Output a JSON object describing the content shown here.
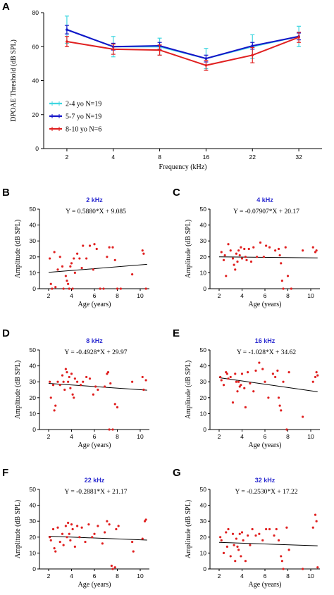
{
  "panel_a": {
    "letter": "A",
    "chart_data": {
      "type": "line",
      "xlabel": "Frequency (kHz)",
      "ylabel": "DPOAE Threshold (dB SPL)",
      "categories": [
        "2",
        "4",
        "8",
        "16",
        "22",
        "32"
      ],
      "ylim": [
        0,
        80
      ],
      "yticks": [
        0,
        20,
        40,
        60,
        80
      ],
      "legend_position": "bottom-left",
      "series": [
        {
          "name": "2-4 yo N=19",
          "color": "#3fd6e0",
          "values": [
            70,
            60,
            60,
            53,
            60,
            66
          ],
          "err": [
            8,
            6,
            5,
            6,
            7,
            6
          ]
        },
        {
          "name": "5-7 yo N=19",
          "color": "#1414c8",
          "values": [
            70,
            60,
            60.5,
            53,
            60.5,
            66
          ],
          "err": [
            2.5,
            2,
            2,
            2,
            2,
            2
          ]
        },
        {
          "name": "8-10 yo N=6",
          "color": "#e02020",
          "values": [
            63,
            58.5,
            58,
            49,
            55,
            65.5
          ],
          "err": [
            3,
            3,
            3,
            3,
            4.5,
            3
          ]
        }
      ]
    }
  },
  "panels": [
    {
      "letter": "B",
      "chart_data": {
        "type": "scatter",
        "title": "2 kHz",
        "equation": "Y = 0.5880*X + 9.085",
        "xlabel": "Age (years)",
        "ylabel": "Amplitude (dB SPL)",
        "xlim": [
          1.2,
          10.8
        ],
        "xticks": [
          2,
          4,
          6,
          8,
          10
        ],
        "ylim": [
          0,
          50
        ],
        "yticks": [
          0,
          10,
          20,
          30,
          40,
          50
        ],
        "fit": {
          "slope": 0.588,
          "intercept": 9.085,
          "x_range": [
            2,
            10.6
          ]
        },
        "points": [
          [
            2.1,
            19
          ],
          [
            2.2,
            3
          ],
          [
            2.3,
            0
          ],
          [
            2.5,
            23
          ],
          [
            2.6,
            1
          ],
          [
            2.8,
            12
          ],
          [
            3.0,
            20
          ],
          [
            3.2,
            14
          ],
          [
            3.3,
            0
          ],
          [
            3.5,
            8
          ],
          [
            3.6,
            5
          ],
          [
            3.7,
            3
          ],
          [
            3.8,
            0
          ],
          [
            3.9,
            14
          ],
          [
            4.0,
            16
          ],
          [
            4.1,
            0
          ],
          [
            4.2,
            19
          ],
          [
            4.3,
            10
          ],
          [
            4.5,
            22
          ],
          [
            4.7,
            19
          ],
          [
            4.9,
            13
          ],
          [
            5.0,
            27
          ],
          [
            5.3,
            19
          ],
          [
            5.6,
            27
          ],
          [
            5.9,
            12
          ],
          [
            6.0,
            28
          ],
          [
            6.2,
            25
          ],
          [
            6.5,
            0
          ],
          [
            6.8,
            0
          ],
          [
            7.1,
            20
          ],
          [
            7.3,
            26
          ],
          [
            7.6,
            26
          ],
          [
            7.8,
            18
          ],
          [
            8.0,
            0
          ],
          [
            8.3,
            0
          ],
          [
            9.3,
            9
          ],
          [
            10.2,
            24
          ],
          [
            10.3,
            22
          ],
          [
            10.5,
            0
          ]
        ]
      }
    },
    {
      "letter": "C",
      "chart_data": {
        "type": "scatter",
        "title": "4 kHz",
        "equation": "Y = -0.07907*X + 20.17",
        "xlabel": "Age (years)",
        "ylabel": "Amplitude (dB SPL)",
        "xlim": [
          1.2,
          10.8
        ],
        "xticks": [
          2,
          4,
          6,
          8,
          10
        ],
        "ylim": [
          0,
          50
        ],
        "yticks": [
          0,
          10,
          20,
          30,
          40,
          50
        ],
        "fit": {
          "slope": -0.07907,
          "intercept": 20.17,
          "x_range": [
            2,
            10.6
          ]
        },
        "points": [
          [
            2.2,
            23
          ],
          [
            2.4,
            18
          ],
          [
            2.5,
            21
          ],
          [
            2.6,
            8
          ],
          [
            2.8,
            28
          ],
          [
            3.0,
            24
          ],
          [
            3.2,
            19
          ],
          [
            3.3,
            15
          ],
          [
            3.4,
            12
          ],
          [
            3.5,
            22
          ],
          [
            3.6,
            17
          ],
          [
            3.7,
            24
          ],
          [
            3.8,
            21
          ],
          [
            3.9,
            26
          ],
          [
            4.0,
            19
          ],
          [
            4.2,
            25
          ],
          [
            4.3,
            20
          ],
          [
            4.4,
            18
          ],
          [
            4.6,
            25
          ],
          [
            4.8,
            17
          ],
          [
            5.0,
            26
          ],
          [
            5.3,
            20
          ],
          [
            5.6,
            29
          ],
          [
            5.9,
            20
          ],
          [
            6.1,
            27
          ],
          [
            6.4,
            26
          ],
          [
            6.9,
            24
          ],
          [
            7.2,
            25
          ],
          [
            7.3,
            21
          ],
          [
            7.4,
            16
          ],
          [
            7.5,
            5
          ],
          [
            7.6,
            0
          ],
          [
            7.8,
            26
          ],
          [
            8.0,
            8
          ],
          [
            8.3,
            0
          ],
          [
            9.3,
            24
          ],
          [
            10.2,
            26
          ],
          [
            10.4,
            23
          ],
          [
            10.5,
            24
          ]
        ]
      }
    },
    {
      "letter": "D",
      "chart_data": {
        "type": "scatter",
        "title": "8 kHz",
        "equation": "Y = -0.4928*X + 29.97",
        "xlabel": "Age (years)",
        "ylabel": "Amplitude (dB SPL)",
        "xlim": [
          1.2,
          10.8
        ],
        "xticks": [
          2,
          4,
          6,
          8,
          10
        ],
        "ylim": [
          0,
          50
        ],
        "yticks": [
          0,
          10,
          20,
          30,
          40,
          50
        ],
        "fit": {
          "slope": -0.4928,
          "intercept": 29.97,
          "x_range": [
            2,
            10.6
          ]
        },
        "points": [
          [
            2.1,
            30
          ],
          [
            2.2,
            20
          ],
          [
            2.4,
            28
          ],
          [
            2.5,
            12
          ],
          [
            2.6,
            15
          ],
          [
            2.8,
            30
          ],
          [
            3.0,
            28
          ],
          [
            3.2,
            34
          ],
          [
            3.3,
            30
          ],
          [
            3.4,
            25
          ],
          [
            3.5,
            38
          ],
          [
            3.6,
            36
          ],
          [
            3.7,
            30
          ],
          [
            3.8,
            33
          ],
          [
            3.9,
            26
          ],
          [
            4.0,
            35
          ],
          [
            4.1,
            22
          ],
          [
            4.2,
            20
          ],
          [
            4.3,
            32
          ],
          [
            4.5,
            30
          ],
          [
            4.8,
            28
          ],
          [
            5.0,
            30
          ],
          [
            5.3,
            33
          ],
          [
            5.6,
            32
          ],
          [
            5.9,
            22
          ],
          [
            6.1,
            27
          ],
          [
            6.3,
            25
          ],
          [
            6.9,
            27
          ],
          [
            7.1,
            35
          ],
          [
            7.2,
            36
          ],
          [
            7.3,
            0
          ],
          [
            7.4,
            29
          ],
          [
            7.6,
            0
          ],
          [
            7.8,
            16
          ],
          [
            8.0,
            14
          ],
          [
            9.3,
            30
          ],
          [
            10.2,
            33
          ],
          [
            10.3,
            25
          ],
          [
            10.5,
            31
          ]
        ]
      }
    },
    {
      "letter": "E",
      "chart_data": {
        "type": "scatter",
        "title": "16 kHz",
        "equation": "Y = -1.028*X + 34.62",
        "xlabel": "Age (years)",
        "ylabel": "Amplitude (dB SPL)",
        "xlim": [
          1.2,
          10.8
        ],
        "xticks": [
          2,
          4,
          6,
          8,
          10
        ],
        "ylim": [
          0,
          50
        ],
        "yticks": [
          0,
          10,
          20,
          30,
          40,
          50
        ],
        "fit": {
          "slope": -1.028,
          "intercept": 34.62,
          "x_range": [
            2,
            10.6
          ]
        },
        "points": [
          [
            2.1,
            33
          ],
          [
            2.2,
            31
          ],
          [
            2.4,
            28
          ],
          [
            2.6,
            36
          ],
          [
            2.7,
            35
          ],
          [
            2.8,
            32
          ],
          [
            3.0,
            33
          ],
          [
            3.2,
            17
          ],
          [
            3.4,
            35
          ],
          [
            3.5,
            30
          ],
          [
            3.6,
            24
          ],
          [
            3.7,
            30
          ],
          [
            3.8,
            27
          ],
          [
            3.9,
            28
          ],
          [
            4.0,
            35
          ],
          [
            4.2,
            26
          ],
          [
            4.3,
            14
          ],
          [
            4.5,
            36
          ],
          [
            4.7,
            29
          ],
          [
            5.0,
            24
          ],
          [
            5.2,
            37
          ],
          [
            5.5,
            42
          ],
          [
            5.8,
            38
          ],
          [
            6.0,
            30
          ],
          [
            6.3,
            20
          ],
          [
            6.7,
            35
          ],
          [
            6.9,
            33
          ],
          [
            7.1,
            37
          ],
          [
            7.2,
            20
          ],
          [
            7.3,
            15
          ],
          [
            7.4,
            12
          ],
          [
            7.6,
            30
          ],
          [
            7.9,
            0
          ],
          [
            8.1,
            36
          ],
          [
            9.3,
            8
          ],
          [
            10.2,
            30
          ],
          [
            10.4,
            33
          ],
          [
            10.5,
            36
          ],
          [
            10.6,
            34
          ]
        ]
      }
    },
    {
      "letter": "F",
      "chart_data": {
        "type": "scatter",
        "title": "22 kHz",
        "equation": "Y = -0.2881*X + 21.17",
        "xlabel": "Age (years)",
        "ylabel": "Amplitude (dB SPL)",
        "xlim": [
          1.2,
          10.8
        ],
        "xticks": [
          2,
          4,
          6,
          8,
          10
        ],
        "ylim": [
          0,
          50
        ],
        "yticks": [
          0,
          10,
          20,
          30,
          40,
          50
        ],
        "fit": {
          "slope": -0.2881,
          "intercept": 21.17,
          "x_range": [
            2,
            10.6
          ]
        },
        "points": [
          [
            2.1,
            20
          ],
          [
            2.2,
            18
          ],
          [
            2.4,
            25
          ],
          [
            2.5,
            13
          ],
          [
            2.6,
            11
          ],
          [
            2.8,
            26
          ],
          [
            3.0,
            17
          ],
          [
            3.2,
            22
          ],
          [
            3.3,
            15
          ],
          [
            3.5,
            27
          ],
          [
            3.6,
            20
          ],
          [
            3.7,
            29
          ],
          [
            3.8,
            22
          ],
          [
            3.9,
            18
          ],
          [
            4.0,
            28
          ],
          [
            4.1,
            25
          ],
          [
            4.3,
            14
          ],
          [
            4.5,
            27
          ],
          [
            4.7,
            20
          ],
          [
            4.9,
            26
          ],
          [
            5.2,
            17
          ],
          [
            5.5,
            28
          ],
          [
            5.8,
            20
          ],
          [
            6.0,
            22
          ],
          [
            6.3,
            27
          ],
          [
            6.7,
            16
          ],
          [
            6.9,
            23
          ],
          [
            7.1,
            30
          ],
          [
            7.3,
            28
          ],
          [
            7.5,
            2
          ],
          [
            7.6,
            0
          ],
          [
            7.8,
            1
          ],
          [
            7.9,
            25
          ],
          [
            8.1,
            27
          ],
          [
            9.3,
            17
          ],
          [
            9.4,
            11
          ],
          [
            10.2,
            19
          ],
          [
            10.4,
            30
          ],
          [
            10.5,
            31
          ]
        ]
      }
    },
    {
      "letter": "G",
      "chart_data": {
        "type": "scatter",
        "title": "32 kHz",
        "equation": "Y = -0.2530*X + 17.22",
        "xlabel": "Age (years)",
        "ylabel": "Amplitude (dB SPL)",
        "xlim": [
          1.2,
          10.8
        ],
        "xticks": [
          2,
          4,
          6,
          8,
          10
        ],
        "ylim": [
          0,
          50
        ],
        "yticks": [
          0,
          10,
          20,
          30,
          40,
          50
        ],
        "fit": {
          "slope": -0.253,
          "intercept": 17.22,
          "x_range": [
            2,
            10.6
          ]
        },
        "points": [
          [
            2.1,
            20
          ],
          [
            2.2,
            18
          ],
          [
            2.4,
            10
          ],
          [
            2.6,
            23
          ],
          [
            2.7,
            14
          ],
          [
            2.8,
            25
          ],
          [
            3.0,
            8
          ],
          [
            3.2,
            22
          ],
          [
            3.3,
            15
          ],
          [
            3.4,
            5
          ],
          [
            3.5,
            19
          ],
          [
            3.6,
            14
          ],
          [
            3.7,
            12
          ],
          [
            3.8,
            22
          ],
          [
            3.9,
            8
          ],
          [
            4.0,
            23
          ],
          [
            4.1,
            18
          ],
          [
            4.3,
            5
          ],
          [
            4.5,
            21
          ],
          [
            4.7,
            15
          ],
          [
            4.9,
            25
          ],
          [
            5.2,
            21
          ],
          [
            5.5,
            22
          ],
          [
            5.8,
            18
          ],
          [
            6.1,
            25
          ],
          [
            6.4,
            25
          ],
          [
            6.8,
            21
          ],
          [
            7.0,
            25
          ],
          [
            7.2,
            18
          ],
          [
            7.4,
            8
          ],
          [
            7.5,
            5
          ],
          [
            7.6,
            0
          ],
          [
            7.9,
            26
          ],
          [
            8.1,
            12
          ],
          [
            9.3,
            0
          ],
          [
            10.2,
            26
          ],
          [
            10.4,
            34
          ],
          [
            10.5,
            30
          ],
          [
            10.6,
            1
          ]
        ]
      }
    }
  ]
}
